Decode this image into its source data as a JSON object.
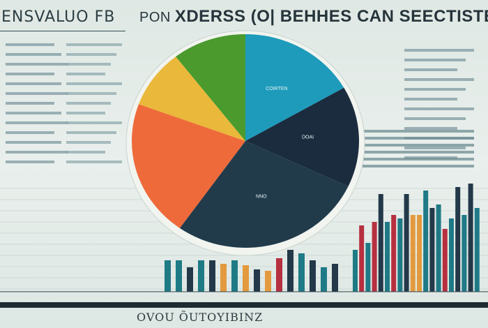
{
  "header": {
    "left_title": "ENSVALUO FB",
    "title_prefix": "PON",
    "title": "XDERSS (O| BEHHES CAN SEECTISTE"
  },
  "footer": {
    "caption": "OVOU ÕUTOYIBINZ"
  },
  "colors": {
    "green": "#4a9a2e",
    "teal": "#1e9bbb",
    "navy": "#1a2c3d",
    "slate": "#213b4b",
    "orange": "#ef6a3a",
    "yellow": "#eab83a",
    "bar_teal": "#1f7a86",
    "bar_navy": "#23394a",
    "bar_orange": "#e39a3e",
    "bar_red": "#b63040"
  },
  "chart_data": [
    {
      "type": "pie",
      "slices": [
        {
          "label": "COIRTEN",
          "value": 16.7,
          "color": "#1e9bbb"
        },
        {
          "label": "DOAI",
          "value": 15.3,
          "color": "#1a2c3d"
        },
        {
          "label": "NNO",
          "value": 27.8,
          "color": "#213b4b"
        },
        {
          "label": "",
          "value": 20.8,
          "color": "#ef6a3a"
        },
        {
          "label": "",
          "value": 8.9,
          "color": "#eab83a"
        },
        {
          "label": "",
          "value": 10.5,
          "color": "#4a9a2e"
        }
      ]
    },
    {
      "type": "bar",
      "values": [
        45,
        45,
        35,
        45,
        45,
        40,
        45,
        38,
        32,
        30,
        48,
        60,
        55,
        45,
        35,
        40,
        60,
        95,
        70,
        100,
        140,
        100,
        110,
        105,
        140,
        110,
        110,
        145,
        120,
        125,
        90,
        105,
        150,
        110,
        155,
        120
      ],
      "colors": [
        "#1f7a86",
        "#1f7a86",
        "#23394a",
        "#1f7a86",
        "#23394a",
        "#e39a3e",
        "#1f7a86",
        "#e39a3e",
        "#23394a",
        "#e39a3e",
        "#b63040",
        "#23394a",
        "#1f7a86",
        "#23394a",
        "#1f7a86",
        "#23394a",
        "#1f7a86",
        "#b63040",
        "#1f7a86",
        "#b63040",
        "#23394a",
        "#1f7a86",
        "#b63040",
        "#1f7a86",
        "#23394a",
        "#e39a3e",
        "#e39a3e",
        "#1f7a86",
        "#23394a",
        "#1f7a86",
        "#b63040",
        "#1f7a86",
        "#23394a",
        "#1f7a86",
        "#23394a",
        "#1f7a86"
      ]
    }
  ]
}
